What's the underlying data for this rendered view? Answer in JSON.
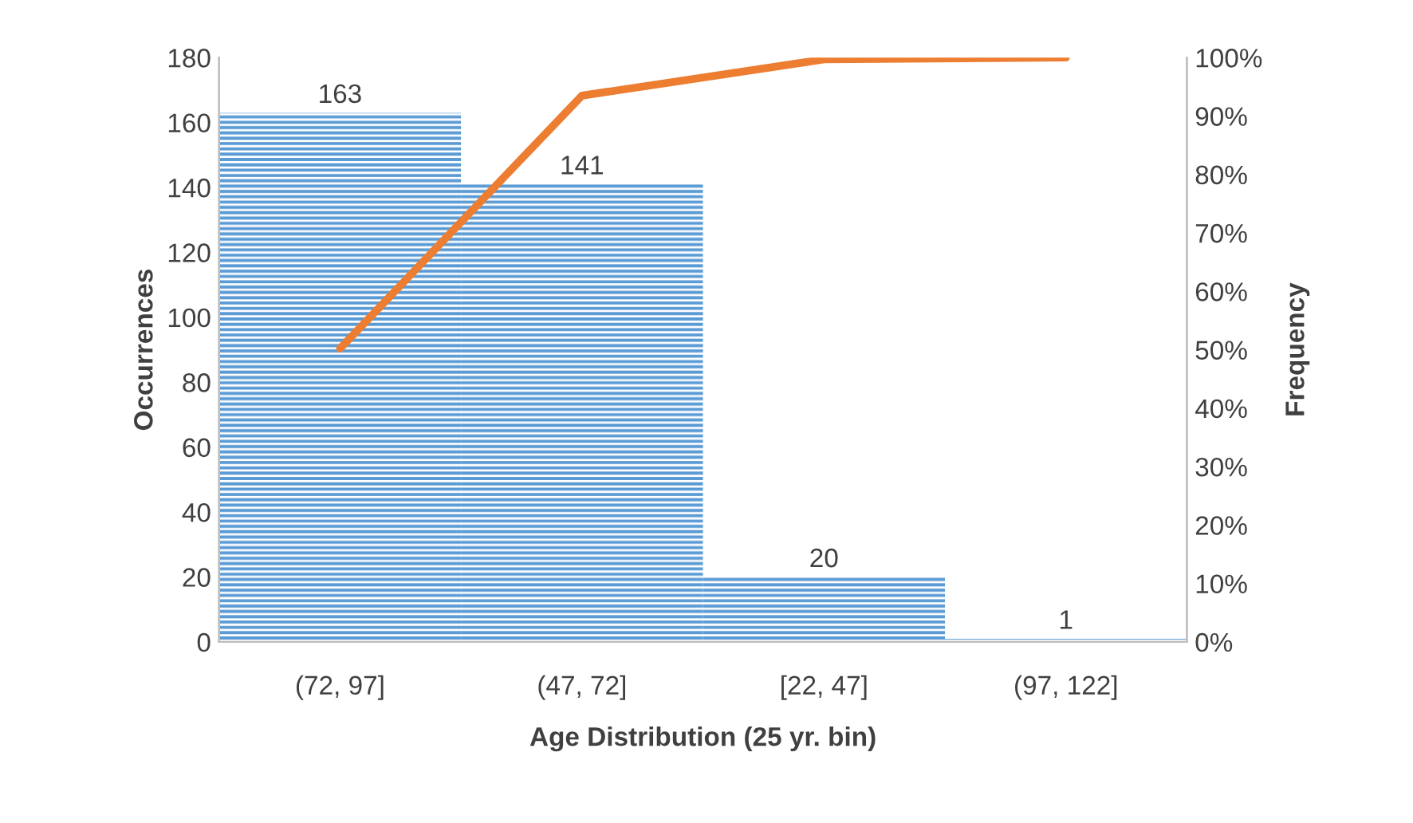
{
  "chart_data": {
    "type": "bar",
    "xlabel": "Age Distribution (25 yr. bin)",
    "ylabel": "Occurrences",
    "y2label": "Frequency",
    "categories": [
      "(72, 97]",
      "(47, 72]",
      "[22, 47]",
      "(97, 122]"
    ],
    "series": [
      {
        "color": "#5b9bd5",
        "values": [
          163,
          141,
          20,
          1
        ],
        "value_labels": [
          "163",
          "141",
          "20",
          "1"
        ]
      },
      {
        "type": "line",
        "axis": "y2",
        "color": "#ed7d31",
        "values": [
          50.2,
          93.5,
          99.7,
          100
        ]
      }
    ],
    "ylim": [
      0,
      180
    ],
    "yticks": [
      0,
      20,
      40,
      60,
      80,
      100,
      120,
      140,
      160,
      180
    ],
    "y2lim": [
      0,
      100
    ],
    "y2ticks": [
      {
        "value": 0,
        "label": "0%"
      },
      {
        "value": 10,
        "label": "10%"
      },
      {
        "value": 20,
        "label": "20%"
      },
      {
        "value": 30,
        "label": "30%"
      },
      {
        "value": 40,
        "label": "40%"
      },
      {
        "value": 50,
        "label": "50%"
      },
      {
        "value": 60,
        "label": "60%"
      },
      {
        "value": 70,
        "label": "70%"
      },
      {
        "value": 80,
        "label": "80%"
      },
      {
        "value": 90,
        "label": "90%"
      },
      {
        "value": 100,
        "label": "100%"
      }
    ],
    "grid": false,
    "legend": false,
    "marker": "none"
  }
}
